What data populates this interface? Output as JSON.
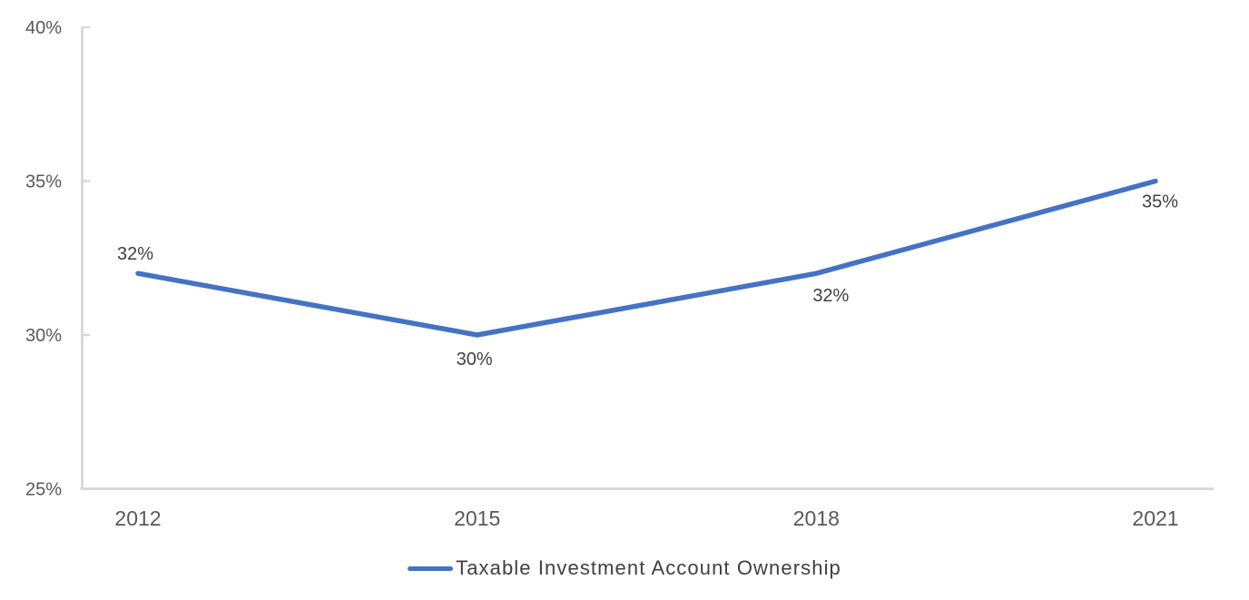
{
  "chart_data": {
    "type": "line",
    "title": "",
    "xlabel": "",
    "ylabel": "",
    "categories": [
      "2012",
      "2015",
      "2018",
      "2021"
    ],
    "series": [
      {
        "name": "Taxable Investment Account Ownership",
        "values": [
          32,
          30,
          32,
          35
        ],
        "data_labels": [
          "32%",
          "30%",
          "32%",
          "35%"
        ],
        "data_label_positions": [
          "above",
          "below",
          "below",
          "below"
        ],
        "color": "#4472C4"
      }
    ],
    "ylim": [
      25,
      40
    ],
    "yticks": [
      {
        "value": 40,
        "label": "40%"
      },
      {
        "value": 35,
        "label": "35%"
      },
      {
        "value": 30,
        "label": "30%"
      },
      {
        "value": 25,
        "label": "25%"
      }
    ],
    "grid": false,
    "legend_position": "bottom",
    "colors": {
      "axis_line": "#D9D9D9",
      "axis_tick_label": "#595959",
      "data_label": "#404040",
      "legend_text": "#404040",
      "background": "#FFFFFF"
    }
  }
}
